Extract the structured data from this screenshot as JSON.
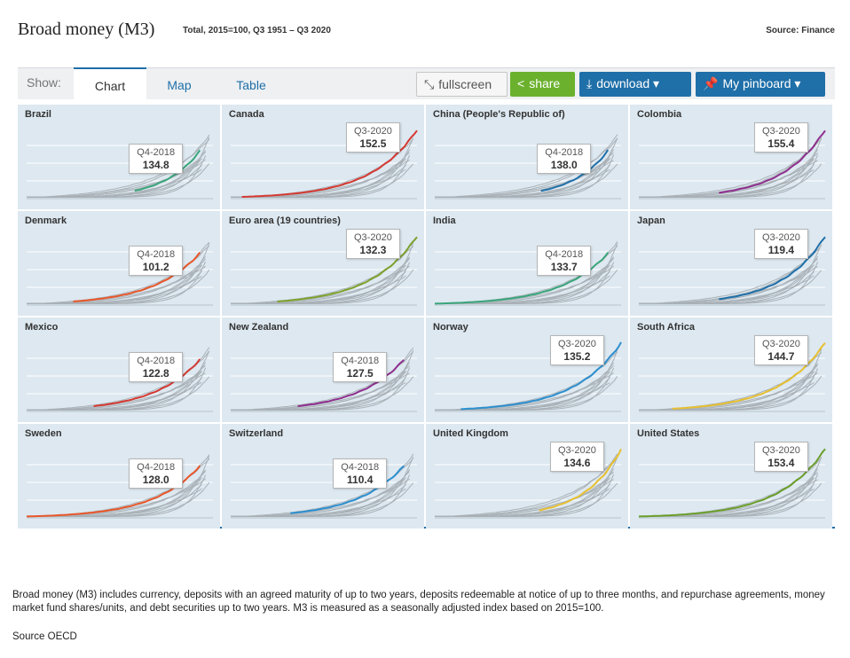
{
  "header": {
    "title": "Broad money (M3)",
    "subtitle": "Total, 2015=100, Q3 1951 – Q3 2020",
    "source": "Source: Finance"
  },
  "toolbar": {
    "show_label": "Show:",
    "tabs": [
      {
        "label": "Chart",
        "active": true
      },
      {
        "label": "Map",
        "active": false
      },
      {
        "label": "Table",
        "active": false
      }
    ],
    "fullscreen_label": "fullscreen",
    "share_label": "share",
    "download_label": "download ▾",
    "pinboard_label": "My pinboard ▾"
  },
  "chart_data": {
    "type": "line",
    "layout": "small-multiples",
    "panels": [
      {
        "name": "Brazil",
        "tooltip_period": "Q4-2018",
        "tooltip_value": "134.8",
        "color": "#3aa57a",
        "start": 0.58,
        "end": 0.93
      },
      {
        "name": "Canada",
        "tooltip_period": "Q3-2020",
        "tooltip_value": "152.5",
        "color": "#d53a32",
        "start": 0.06,
        "end": 1.0
      },
      {
        "name": "China (People's Republic of)",
        "tooltip_period": "Q4-2018",
        "tooltip_value": "138.0",
        "color": "#1f6fa8",
        "start": 0.57,
        "end": 0.93
      },
      {
        "name": "Colombia",
        "tooltip_period": "Q3-2020",
        "tooltip_value": "155.4",
        "color": "#8e2f8e",
        "start": 0.43,
        "end": 1.0
      },
      {
        "name": "Denmark",
        "tooltip_period": "Q4-2018",
        "tooltip_value": "101.2",
        "color": "#e8572a",
        "start": 0.25,
        "end": 0.93
      },
      {
        "name": "Euro area (19 countries)",
        "tooltip_period": "Q3-2020",
        "tooltip_value": "132.3",
        "color": "#7da22c",
        "start": 0.25,
        "end": 1.0
      },
      {
        "name": "India",
        "tooltip_period": "Q4-2018",
        "tooltip_value": "133.7",
        "color": "#3aa57a",
        "start": 0.0,
        "end": 0.93
      },
      {
        "name": "Japan",
        "tooltip_period": "Q3-2020",
        "tooltip_value": "119.4",
        "color": "#1f6fa8",
        "start": 0.43,
        "end": 1.0
      },
      {
        "name": "Mexico",
        "tooltip_period": "Q4-2018",
        "tooltip_value": "122.8",
        "color": "#d53a32",
        "start": 0.36,
        "end": 0.93
      },
      {
        "name": "New Zealand",
        "tooltip_period": "Q4-2018",
        "tooltip_value": "127.5",
        "color": "#8e2f8e",
        "start": 0.36,
        "end": 0.93
      },
      {
        "name": "Norway",
        "tooltip_period": "Q3-2020",
        "tooltip_value": "135.2",
        "color": "#2d8fcf",
        "start": 0.14,
        "end": 1.0
      },
      {
        "name": "South Africa",
        "tooltip_period": "Q3-2020",
        "tooltip_value": "144.7",
        "color": "#e8c030",
        "start": 0.18,
        "end": 1.0
      },
      {
        "name": "Sweden",
        "tooltip_period": "Q4-2018",
        "tooltip_value": "128.0",
        "color": "#e8572a",
        "start": 0.0,
        "end": 0.93
      },
      {
        "name": "Switzerland",
        "tooltip_period": "Q4-2018",
        "tooltip_value": "110.4",
        "color": "#2d8fcf",
        "start": 0.32,
        "end": 0.93
      },
      {
        "name": "United Kingdom",
        "tooltip_period": "Q3-2020",
        "tooltip_value": "134.6",
        "color": "#e8c030",
        "start": 0.56,
        "end": 1.0
      },
      {
        "name": "United States",
        "tooltip_period": "Q3-2020",
        "tooltip_value": "153.4",
        "color": "#6b9e2a",
        "start": 0.0,
        "end": 1.0
      }
    ]
  },
  "footnote": "Broad money (M3) includes currency, deposits with an agreed maturity of up to two years, deposits redeemable at notice of up to three months, and repurchase agreements, money market fund shares/units, and debt securities up to two years. M3 is measured as a seasonally adjusted index based on 2015=100.",
  "source_bottom": "Source OECD"
}
